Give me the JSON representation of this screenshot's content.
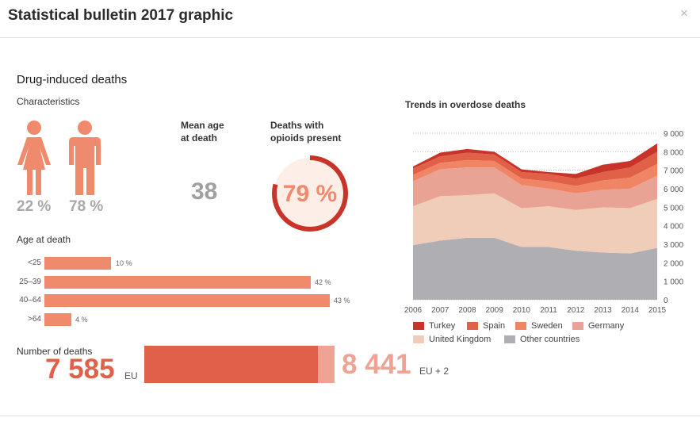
{
  "window": {
    "title": "Statistical bulletin 2017 graphic",
    "close": "×"
  },
  "section_title": "Drug-induced deaths",
  "characteristics": {
    "title": "Characteristics",
    "female_pct": "22 %",
    "male_pct": "78 %",
    "mean_age_label": "Mean age\nat death",
    "mean_age_value": "38",
    "opioids_label": "Deaths with\nopioids present",
    "opioids_value": "79 %",
    "opioids_fraction": 0.79
  },
  "age": {
    "title": "Age at death",
    "rows": [
      {
        "label": "<25",
        "value": 10,
        "text": "10 %"
      },
      {
        "label": "25–39",
        "value": 42,
        "text": "42 %"
      },
      {
        "label": "40–64",
        "value": 43,
        "text": "43 %"
      },
      {
        "label": ">64",
        "value": 4,
        "text": "4 %"
      }
    ]
  },
  "deaths": {
    "title": "Number of deaths",
    "eu_value": "7 585",
    "eu_label": "EU",
    "total_value": "8 441",
    "total_label": "EU + 2",
    "eu_number": 7585,
    "total_number": 8441
  },
  "colors": {
    "turkey": "#c8332a",
    "spain": "#e06048",
    "sweden": "#f08566",
    "germany": "#e8a394",
    "uk": "#f0cdb8",
    "other": "#aeaeb3"
  },
  "chart_data": {
    "type": "area",
    "title": "Trends in overdose deaths",
    "x": [
      2006,
      2007,
      2008,
      2009,
      2010,
      2011,
      2012,
      2013,
      2014,
      2015
    ],
    "ylim": [
      0,
      9000
    ],
    "yticks": [
      "0",
      "1 000",
      "2 000",
      "3 000",
      "4 000",
      "5 000",
      "6 000",
      "7 000",
      "8 000",
      "9 000"
    ],
    "stacked": true,
    "grid": true,
    "series": [
      {
        "name": "Other countries",
        "key": "other",
        "values": [
          2950,
          3200,
          3350,
          3350,
          2850,
          2850,
          2650,
          2550,
          2500,
          2800
        ]
      },
      {
        "name": "United Kingdom",
        "key": "uk",
        "values": [
          2100,
          2400,
          2300,
          2400,
          2100,
          2200,
          2200,
          2450,
          2450,
          2650
        ]
      },
      {
        "name": "Germany",
        "key": "germany",
        "values": [
          1350,
          1450,
          1500,
          1400,
          1250,
          950,
          900,
          950,
          1050,
          1250
        ]
      },
      {
        "name": "Sweden",
        "key": "sweden",
        "values": [
          350,
          350,
          400,
          350,
          350,
          400,
          400,
          500,
          600,
          650
        ]
      },
      {
        "name": "Spain",
        "key": "spain",
        "values": [
          350,
          350,
          400,
          350,
          350,
          400,
          400,
          450,
          550,
          650
        ]
      },
      {
        "name": "Turkey",
        "key": "turkey",
        "values": [
          100,
          200,
          200,
          150,
          150,
          100,
          250,
          400,
          350,
          450
        ]
      }
    ],
    "legend": [
      {
        "name": "Turkey",
        "key": "turkey"
      },
      {
        "name": "Spain",
        "key": "spain"
      },
      {
        "name": "Sweden",
        "key": "sweden"
      },
      {
        "name": "Germany",
        "key": "germany"
      },
      {
        "name": "United Kingdom",
        "key": "uk"
      },
      {
        "name": "Other countries",
        "key": "other"
      }
    ]
  }
}
